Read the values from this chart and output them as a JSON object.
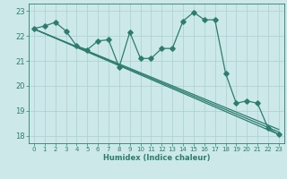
{
  "title": "",
  "xlabel": "Humidex (Indice chaleur)",
  "ylabel": "",
  "bg_color": "#cce8e8",
  "line_color": "#2d7d6e",
  "grid_color": "#aacfcf",
  "xlim": [
    -0.5,
    23.5
  ],
  "ylim": [
    17.7,
    23.3
  ],
  "yticks": [
    18,
    19,
    20,
    21,
    22,
    23
  ],
  "xticks": [
    0,
    1,
    2,
    3,
    4,
    5,
    6,
    7,
    8,
    9,
    10,
    11,
    12,
    13,
    14,
    15,
    16,
    17,
    18,
    19,
    20,
    21,
    22,
    23
  ],
  "main_x": [
    0,
    1,
    2,
    3,
    4,
    5,
    6,
    7,
    8,
    9,
    10,
    11,
    12,
    13,
    14,
    15,
    16,
    17,
    18,
    19,
    20,
    21,
    22,
    23
  ],
  "main_y": [
    22.3,
    22.4,
    22.55,
    22.2,
    21.6,
    21.45,
    21.8,
    21.85,
    20.75,
    22.15,
    21.1,
    21.1,
    21.5,
    21.5,
    22.6,
    22.95,
    22.65,
    22.65,
    20.5,
    19.3,
    19.4,
    19.3,
    18.3,
    18.05
  ],
  "trend_lines": [
    {
      "x0": 0.0,
      "y0": 22.28,
      "x1": 23.0,
      "y1": 18.05
    },
    {
      "x0": 0.0,
      "y0": 22.28,
      "x1": 23.0,
      "y1": 18.15
    },
    {
      "x0": 0.0,
      "y0": 22.28,
      "x1": 23.0,
      "y1": 18.25
    }
  ],
  "marker_size": 2.8,
  "linewidth": 0.9
}
